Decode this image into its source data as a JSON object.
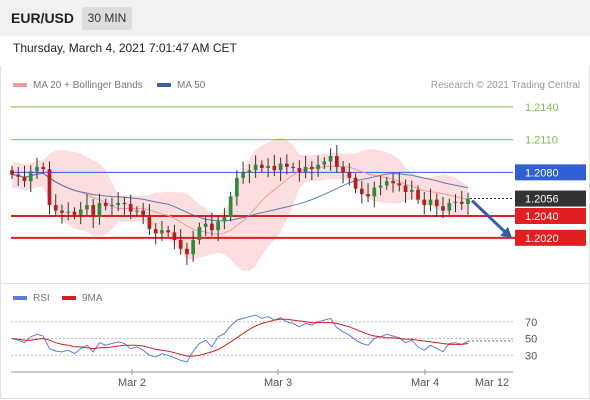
{
  "header": {
    "symbol": "EUR/USD",
    "timeframe": "30 MIN"
  },
  "timestamp": "Thursday, March 4, 2021 7:01:47 AM CET",
  "legend": {
    "ma20_label": "MA 20 + Bollinger Bands",
    "ma20_color": "#f29a9a",
    "ma50_label": "MA 50",
    "ma50_color": "#3a5ea8",
    "rsi_label": "RSI",
    "rsi_color": "#5a7fd6",
    "ma9_label": "9MA",
    "ma9_color": "#d12020"
  },
  "copyright": "Research © 2021 Trading Central",
  "chart_data": [
    {
      "type": "candlestick",
      "title": "",
      "y_axis_ticks": [
        "1.2140",
        "1.2110",
        "1.2080",
        "1.2056",
        "1.2040",
        "1.2020"
      ],
      "ylim": [
        1.1985,
        1.215
      ],
      "x_tick_labels": [
        "Mar 2",
        "Mar 3",
        "Mar 4",
        "Mar 12"
      ],
      "last_price": 1.2056,
      "levels": [
        {
          "value": 1.214,
          "label": "1.2140",
          "kind": "resistance",
          "color": "#7cc14a"
        },
        {
          "value": 1.211,
          "label": "1.2110",
          "kind": "resistance",
          "color": "#7cc14a"
        },
        {
          "value": 1.208,
          "label": "1.2080",
          "kind": "pivot",
          "color": "#2f5fd0"
        },
        {
          "value": 1.204,
          "label": "1.2040",
          "kind": "support",
          "color": "#e02020"
        },
        {
          "value": 1.202,
          "label": "1.2020",
          "kind": "support",
          "color": "#e02020"
        }
      ],
      "close_series": [
        1.2078,
        1.2076,
        1.2072,
        1.2081,
        1.2085,
        1.2083,
        1.205,
        1.2045,
        1.2043,
        1.2044,
        1.2041,
        1.2046,
        1.205,
        1.2039,
        1.2052,
        1.2049,
        1.205,
        1.2052,
        1.2051,
        1.2044,
        1.2045,
        1.2041,
        1.2028,
        1.2024,
        1.2027,
        1.2025,
        1.2018,
        1.201,
        1.2005,
        1.2018,
        1.203,
        1.2033,
        1.2027,
        1.2035,
        1.2039,
        1.2058,
        1.2075,
        1.208,
        1.2082,
        1.2087,
        1.2084,
        1.2086,
        1.2082,
        1.2088,
        1.2085,
        1.2084,
        1.208,
        1.2085,
        1.2083,
        1.2087,
        1.209,
        1.2095,
        1.2085,
        1.208,
        1.2075,
        1.2065,
        1.206,
        1.2058,
        1.2066,
        1.2068,
        1.2072,
        1.207,
        1.2068,
        1.2062,
        1.2064,
        1.2055,
        1.205,
        1.2055,
        1.2049,
        1.2045,
        1.2052,
        1.2053,
        1.2051,
        1.2056
      ],
      "forecast_target": 1.202
    },
    {
      "type": "line",
      "title": "RSI",
      "y_axis_ticks": [
        "70",
        "50",
        "30"
      ],
      "ylim": [
        10,
        90
      ],
      "series": [
        {
          "name": "RSI",
          "values": [
            50,
            48,
            45,
            52,
            55,
            53,
            38,
            35,
            34,
            36,
            32,
            38,
            42,
            34,
            45,
            42,
            44,
            46,
            44,
            38,
            40,
            36,
            30,
            28,
            32,
            30,
            27,
            24,
            22,
            35,
            44,
            48,
            40,
            52,
            56,
            65,
            72,
            74,
            76,
            78,
            74,
            76,
            72,
            75,
            70,
            68,
            64,
            68,
            66,
            70,
            72,
            74,
            63,
            58,
            54,
            48,
            44,
            42,
            50,
            52,
            55,
            53,
            51,
            45,
            48,
            40,
            36,
            42,
            38,
            34,
            44,
            45,
            43,
            47
          ]
        },
        {
          "name": "9MA",
          "values": [
            50,
            49,
            48,
            48,
            49,
            50,
            48,
            45,
            43,
            42,
            40,
            40,
            39,
            38,
            39,
            39,
            40,
            41,
            42,
            42,
            42,
            41,
            39,
            37,
            36,
            35,
            33,
            31,
            29,
            29,
            30,
            32,
            34,
            37,
            41,
            46,
            51,
            56,
            61,
            65,
            68,
            70,
            72,
            73,
            73,
            72,
            71,
            70,
            69,
            69,
            69,
            69,
            68,
            66,
            64,
            61,
            58,
            55,
            53,
            52,
            51,
            51,
            50,
            49,
            49,
            48,
            47,
            46,
            45,
            44,
            43,
            43,
            43,
            44
          ]
        }
      ]
    }
  ]
}
